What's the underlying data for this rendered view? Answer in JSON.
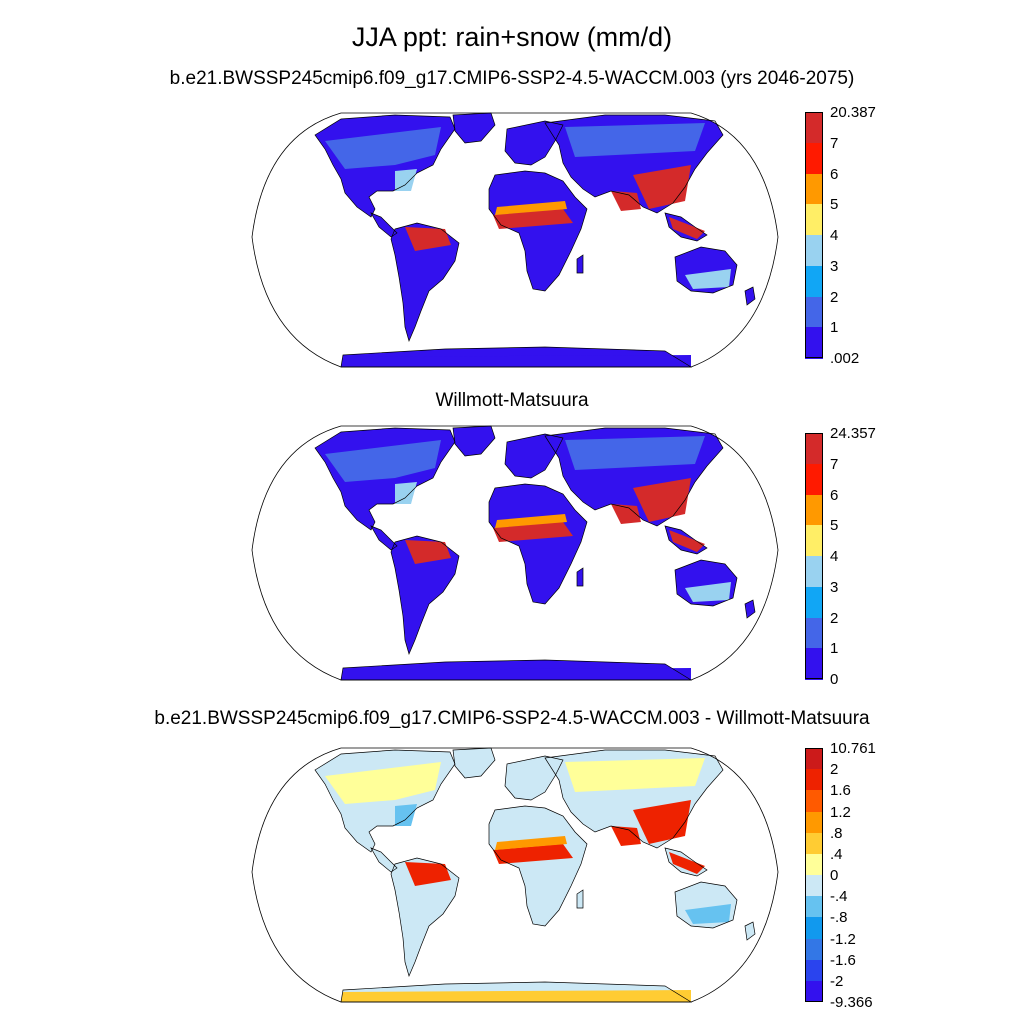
{
  "title": "JJA ppt: rain+snow (mm/d)",
  "panels": [
    {
      "title": "b.e21.BWSSP245cmip6.f09_g17.CMIP6-SSP2-4.5-WACCM.003 (yrs 2046-2075)",
      "colorbar": {
        "labels": [
          "20.387",
          "7",
          "6",
          "5",
          "4",
          "3",
          "2",
          "1",
          ".002"
        ],
        "colors": [
          "#d42a2a",
          "#ff1a00",
          "#ff9900",
          "#ffee66",
          "#99d2f0",
          "#11a6f5",
          "#4466e8",
          "#3311ee"
        ]
      }
    },
    {
      "title": "Willmott-Matsuura",
      "colorbar": {
        "labels": [
          "24.357",
          "7",
          "6",
          "5",
          "4",
          "3",
          "2",
          "1",
          "0"
        ],
        "colors": [
          "#d42a2a",
          "#ff1a00",
          "#ff9900",
          "#ffee66",
          "#99d2f0",
          "#11a6f5",
          "#4466e8",
          "#3311ee"
        ]
      }
    },
    {
      "title": "b.e21.BWSSP245cmip6.f09_g17.CMIP6-SSP2-4.5-WACCM.003 - Willmott-Matsuura",
      "colorbar": {
        "labels": [
          "10.761",
          "2",
          "1.6",
          "1.2",
          ".8",
          ".4",
          "0",
          "-.4",
          "-.8",
          "-1.2",
          "-1.6",
          "-2",
          "-9.366"
        ],
        "colors": [
          "#cc1a1a",
          "#ee2200",
          "#ff5a00",
          "#ff9900",
          "#ffcc33",
          "#ffff99",
          "#cce8f5",
          "#66c2f0",
          "#1199ee",
          "#3377e6",
          "#2a44ee",
          "#3311ee"
        ]
      }
    }
  ]
}
